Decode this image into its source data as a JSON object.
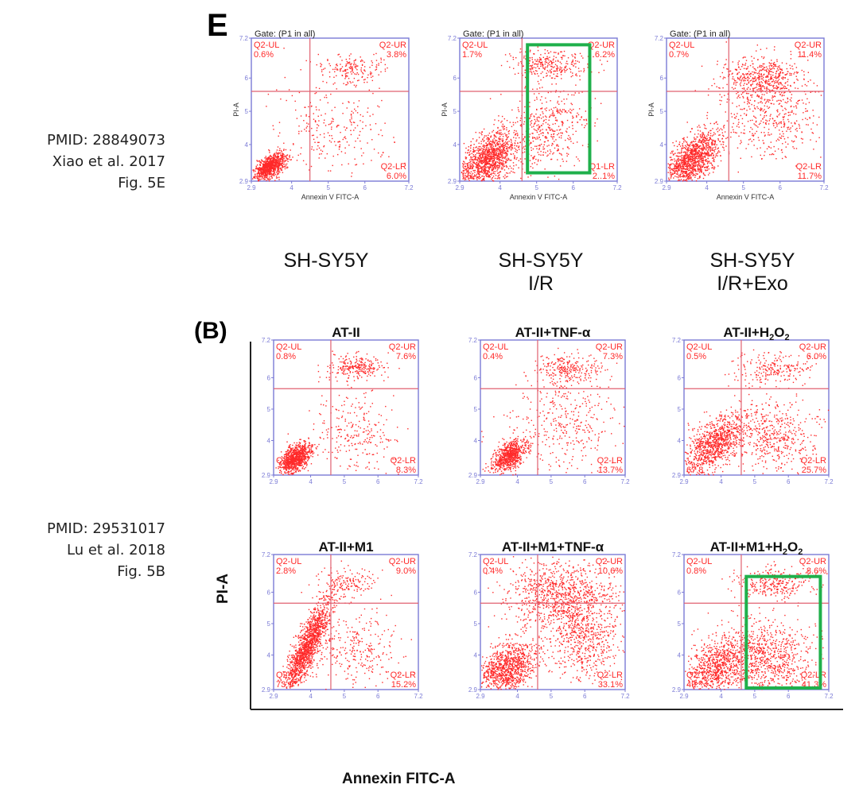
{
  "citations": [
    {
      "pmid": "PMID: 28849073",
      "authors": "Xiao et al. 2017",
      "figure": "Fig. 5E"
    },
    {
      "pmid": "PMID: 29531017",
      "authors": "Lu et al. 2018",
      "figure": "Fig. 5B"
    }
  ],
  "panels": {
    "top_letter": "E",
    "bottom_letter": "(B)"
  },
  "colors": {
    "dots": "#ff2a2a",
    "frame": "#7b7bd6",
    "quadrant_line": "#e06070",
    "highlight": "#1fb04b"
  },
  "bottom_axes": {
    "ylabel": "PI-A",
    "xlabel": "Annexin FITC-A"
  },
  "chart_data": [
    {
      "type": "scatter",
      "group": "top",
      "condition": "SH-SY5Y",
      "title": "",
      "gate": "Gate: (P1 in all)",
      "xlabel": "Annexin V FITC-A",
      "ylabel": "PI-A",
      "xlim": [
        2.9,
        7.2
      ],
      "ylim": [
        2.9,
        7.2
      ],
      "log_scale": true,
      "x_ticks": [
        "2.9",
        "4",
        "5",
        "6",
        "7.2"
      ],
      "y_ticks": [
        "2.9",
        "4",
        "5",
        "6",
        "7.2"
      ],
      "quadrants": {
        "UL": "Q2-UL",
        "UL_pct": "0.6%",
        "UR": "Q2-UR",
        "UR_pct": "3.8%",
        "LL": "",
        "LL_pct": "",
        "LR": "Q2-LR",
        "LR_pct": "6.0%"
      },
      "quadrant_split": {
        "x": 4.5,
        "y": 5.6
      },
      "highlight": null
    },
    {
      "type": "scatter",
      "group": "top",
      "condition": "SH-SY5Y\nI/R",
      "title": "",
      "gate": "Gate: (P1 in all)",
      "xlabel": "Annexin V FITC-A",
      "ylabel": "PI-A",
      "xlim": [
        2.9,
        7.2
      ],
      "ylim": [
        2.9,
        7.2
      ],
      "log_scale": true,
      "x_ticks": [
        "2.9",
        "4",
        "5",
        "6",
        "7.2"
      ],
      "y_ticks": [
        "2.9",
        "4",
        "5",
        "6",
        "7.2"
      ],
      "quadrants": {
        "UL": "Q2-UL",
        "UL_pct": "1.7%",
        "UR": "Q2-UR",
        "UR_pct": "6.2%",
        "LL": "Q2",
        "LL_pct": "66.",
        "LR": "Q1-LR",
        "LR_pct": "2..1%"
      },
      "quadrant_split": {
        "x": 4.6,
        "y": 5.6
      },
      "highlight": {
        "x": [
          4.75,
          6.45
        ],
        "y": [
          3.15,
          7.0
        ]
      }
    },
    {
      "type": "scatter",
      "group": "top",
      "condition": "SH-SY5Y\nI/R+Exo",
      "title": "",
      "gate": "Gate: (P1 in all)",
      "xlabel": "Annexin V FITC-A",
      "ylabel": "PI-A",
      "xlim": [
        2.9,
        7.2
      ],
      "ylim": [
        2.9,
        7.2
      ],
      "log_scale": true,
      "x_ticks": [
        "2.9",
        "4",
        "5",
        "6",
        "7.2"
      ],
      "y_ticks": [
        "2.9",
        "4",
        "5",
        "6",
        "7.2"
      ],
      "quadrants": {
        "UL": "Q2-UL",
        "UL_pct": "0.7%",
        "UR": "Q2-UR",
        "UR_pct": "11.4%",
        "LL": "Q2",
        "LL_pct": "7",
        "LR": "Q2-LR",
        "LR_pct": "11.7%"
      },
      "quadrant_split": {
        "x": 4.6,
        "y": 5.6
      },
      "highlight": null
    },
    {
      "type": "scatter",
      "group": "bottom",
      "condition": "",
      "title": "AT-II",
      "title_sub": "",
      "title_tail": "",
      "gate": "",
      "xlim": [
        2.9,
        7.2
      ],
      "ylim": [
        2.9,
        7.2
      ],
      "log_scale": true,
      "x_ticks": [
        "2.9",
        "4",
        "5",
        "6",
        "7.2"
      ],
      "y_ticks": [
        "2.9",
        "4",
        "5",
        "6",
        "7.2"
      ],
      "quadrants": {
        "UL": "Q2-UL",
        "UL_pct": "0.8%",
        "UR": "Q2-UR",
        "UR_pct": "7.6%",
        "LL": "Q2",
        "LL_pct": "",
        "LR": "Q2-LR",
        "LR_pct": "8.3%"
      },
      "quadrant_split": {
        "x": 4.6,
        "y": 5.65
      },
      "highlight": null
    },
    {
      "type": "scatter",
      "group": "bottom",
      "condition": "",
      "title": "AT-II+TNF-α",
      "title_sub": "",
      "title_tail": "",
      "gate": "",
      "xlim": [
        2.9,
        7.2
      ],
      "ylim": [
        2.9,
        7.2
      ],
      "log_scale": true,
      "x_ticks": [
        "2.9",
        "4",
        "5",
        "6",
        "7.2"
      ],
      "y_ticks": [
        "2.9",
        "4",
        "5",
        "6",
        "7.2"
      ],
      "quadrants": {
        "UL": "Q2-UL",
        "UL_pct": "0.4%",
        "UR": "Q2-UR",
        "UR_pct": "7.3%",
        "LL": "",
        "LL_pct": "",
        "LR": "Q2-LR",
        "LR_pct": "13.7%"
      },
      "quadrant_split": {
        "x": 4.6,
        "y": 5.65
      },
      "highlight": null
    },
    {
      "type": "scatter",
      "group": "bottom",
      "condition": "",
      "title": "AT-II+H",
      "title_sub": "2",
      "title_tail": "O",
      "title_sub2": "2",
      "gate": "",
      "xlim": [
        2.9,
        7.2
      ],
      "ylim": [
        2.9,
        7.2
      ],
      "log_scale": true,
      "x_ticks": [
        "2.9",
        "4",
        "5",
        "6",
        "7.2"
      ],
      "y_ticks": [
        "2.9",
        "4",
        "5",
        "6",
        "7.2"
      ],
      "quadrants": {
        "UL": "Q2-UL",
        "UL_pct": "0.5%",
        "UR": "Q2-UR",
        "UR_pct": "6.0%",
        "LL": "",
        "LL_pct": "67.8",
        "LR": "Q2-LR",
        "LR_pct": "25.7%"
      },
      "quadrant_split": {
        "x": 4.6,
        "y": 5.65
      },
      "highlight": null
    },
    {
      "type": "scatter",
      "group": "bottom",
      "condition": "",
      "title": "AT-II+M1",
      "title_sub": "",
      "title_tail": "",
      "gate": "",
      "xlim": [
        2.9,
        7.2
      ],
      "ylim": [
        2.9,
        7.2
      ],
      "log_scale": true,
      "x_ticks": [
        "2.9",
        "4",
        "5",
        "6",
        "7.2"
      ],
      "y_ticks": [
        "2.9",
        "4",
        "5",
        "6",
        "7.2"
      ],
      "quadrants": {
        "UL": "Q2-UL",
        "UL_pct": "2.8%",
        "UR": "Q2-UR",
        "UR_pct": "9.0%",
        "LL": "Q2-L",
        "LL_pct": "73.1",
        "LR": "Q2-LR",
        "LR_pct": "15.2%"
      },
      "quadrant_split": {
        "x": 4.6,
        "y": 5.65
      },
      "highlight": null
    },
    {
      "type": "scatter",
      "group": "bottom",
      "condition": "",
      "title": "AT-II+M1+TNF-α",
      "title_sub": "",
      "title_tail": "",
      "gate": "",
      "xlim": [
        2.9,
        7.2
      ],
      "ylim": [
        2.9,
        7.2
      ],
      "log_scale": true,
      "x_ticks": [
        "2.9",
        "4",
        "5",
        "6",
        "7.2"
      ],
      "y_ticks": [
        "2.9",
        "4",
        "5",
        "6",
        "7.2"
      ],
      "quadrants": {
        "UL": "Q2-UL",
        "UL_pct": "0.4%",
        "UR": "Q2-UR",
        "UR_pct": "10.6%",
        "LL": "Q2",
        "LL_pct": "",
        "LR": "Q2-LR",
        "LR_pct": "33.1%"
      },
      "quadrant_split": {
        "x": 4.6,
        "y": 5.65
      },
      "highlight": null
    },
    {
      "type": "scatter",
      "group": "bottom",
      "condition": "",
      "title": "AT-II+M1+H",
      "title_sub": "2",
      "title_tail": "O",
      "title_sub2": "2",
      "gate": "",
      "xlim": [
        2.9,
        7.2
      ],
      "ylim": [
        2.9,
        7.2
      ],
      "log_scale": true,
      "x_ticks": [
        "2.9",
        "4",
        "5",
        "6",
        "7.2"
      ],
      "y_ticks": [
        "2.9",
        "4",
        "5",
        "6",
        "7.2"
      ],
      "quadrants": {
        "UL": "Q2-UL",
        "UL_pct": "0.8%",
        "UR": "Q2-UR",
        "UR_pct": "8.6%",
        "LL": "Q2",
        "LL_pct": "49.",
        "LR": "Q2-LR",
        "LR_pct": "41.3%"
      },
      "quadrant_split": {
        "x": 4.6,
        "y": 5.65
      },
      "highlight": {
        "x": [
          4.75,
          6.95
        ],
        "y": [
          2.95,
          6.5
        ]
      }
    }
  ]
}
